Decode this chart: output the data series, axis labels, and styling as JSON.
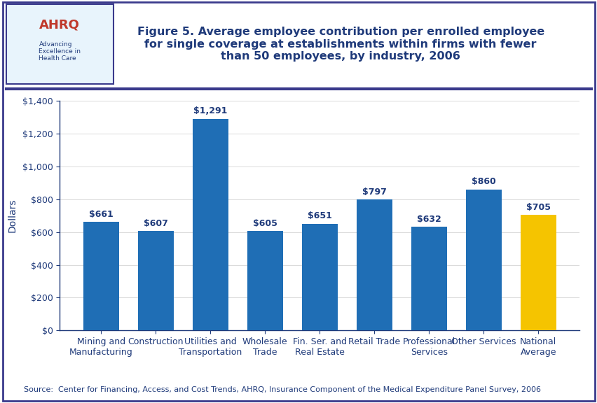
{
  "categories": [
    "Mining and\nManufacturing",
    "Construction",
    "Utilities and\nTransportation",
    "Wholesale\nTrade",
    "Fin. Ser. and\nReal Estate",
    "Retail Trade",
    "Professional\nServices",
    "Other Services",
    "National\nAverage"
  ],
  "values": [
    661,
    607,
    1291,
    605,
    651,
    797,
    632,
    860,
    705
  ],
  "labels": [
    "$661",
    "$607",
    "$1,291",
    "$605",
    "$651",
    "$797",
    "$632",
    "$860",
    "$705"
  ],
  "bar_colors": [
    "#1F6EB5",
    "#1F6EB5",
    "#1F6EB5",
    "#1F6EB5",
    "#1F6EB5",
    "#1F6EB5",
    "#1F6EB5",
    "#1F6EB5",
    "#F5C400"
  ],
  "title_line1": "Figure 5. Average employee contribution per enrolled employee",
  "title_line2": "for single coverage at establishments within firms with fewer",
  "title_line3": "than 50 employees, by industry, 2006",
  "ylabel": "Dollars",
  "ylim": [
    0,
    1400
  ],
  "yticks": [
    0,
    200,
    400,
    600,
    800,
    1000,
    1200,
    1400
  ],
  "ytick_labels": [
    "$0",
    "$200",
    "$400",
    "$600",
    "$800",
    "$1,000",
    "$1,200",
    "$1,400"
  ],
  "source_text": "Source:  Center for Financing, Access, and Cost Trends, AHRQ, Insurance Component of the Medical Expenditure Panel Survey, 2006",
  "title_color": "#1F3A7A",
  "axis_color": "#1F3A7A",
  "border_color": "#3A3A8C",
  "header_line_color": "#3A3A8C",
  "background_color": "#FFFFFF",
  "label_fontsize": 9,
  "tick_fontsize": 9,
  "ylabel_fontsize": 10,
  "source_fontsize": 8
}
